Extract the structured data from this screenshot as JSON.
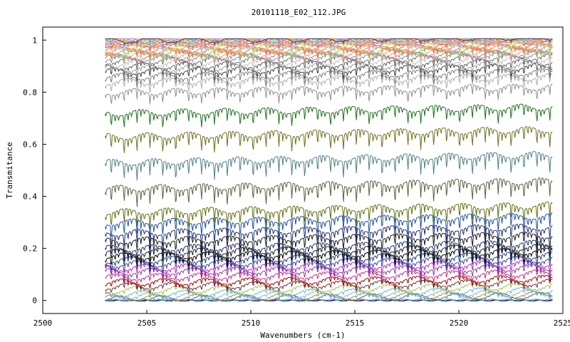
{
  "chart_data": {
    "type": "line",
    "title": "20101118_E02_112.JPG",
    "xlabel": "Wavenumbers (cm-1)",
    "ylabel": "Transmitance",
    "xlim": [
      2500,
      2525
    ],
    "ylim": [
      -0.05,
      1.05
    ],
    "x_ticks": [
      "2500",
      "2505",
      "2510",
      "2515",
      "2520",
      "2525"
    ],
    "y_ticks": [
      "0",
      "0.2",
      "0.4",
      "0.6",
      "0.8",
      "1"
    ],
    "grid": false,
    "legend": "none",
    "x_data_range": [
      2503.0,
      2524.5
    ],
    "line_count": 56,
    "baseline_levels": [
      0.0,
      0.0,
      0.003,
      0.006,
      0.01,
      0.016,
      0.025,
      0.04,
      0.055,
      0.07,
      0.09,
      0.11,
      0.125,
      0.14,
      0.155,
      0.17,
      0.185,
      0.2,
      0.23,
      0.26,
      0.3,
      0.34,
      0.43,
      0.53,
      0.63,
      0.72,
      0.8,
      0.84,
      0.86,
      0.88,
      0.89,
      0.9,
      0.91,
      0.92,
      0.93,
      0.935,
      0.94,
      0.945,
      0.95,
      0.955,
      0.96,
      0.965,
      0.97,
      0.974,
      0.978,
      0.982,
      0.985,
      0.988,
      0.99,
      0.992,
      0.994,
      0.996,
      0.997,
      0.998,
      0.999,
      1.0
    ],
    "series_colors": [
      "#000080",
      "#2a2a70",
      "#40a0c0",
      "#606060",
      "#80a040",
      "#a0a0ff",
      "#60c0c0",
      "#a0c060",
      "#703030",
      "#a00000",
      "#c03080",
      "#8040a0",
      "#c020c0",
      "#4040a0",
      "#204080",
      "#000000",
      "#202020",
      "#203060",
      "#1a1a1a",
      "#203070",
      "#2050a0",
      "#607010",
      "#606040",
      "#508080",
      "#707020",
      "#207020",
      "#909090",
      "#b0b0b0",
      "#808080",
      "#404040",
      "#a0a0a0",
      "#606060",
      "#c0c0c0",
      "#707070",
      "#909090",
      "#b08080",
      "#d0a0a0",
      "#c0c080",
      "#80c080",
      "#e08060",
      "#ff8040",
      "#f07050",
      "#e0a060",
      "#c0e080",
      "#a0d0ff",
      "#ff9090",
      "#e06030",
      "#ffa060",
      "#80ff80",
      "#ff6060",
      "#6080ff",
      "#ffc040",
      "#c080ff",
      "#40c0c0",
      "#ff8080",
      "#404040"
    ]
  }
}
